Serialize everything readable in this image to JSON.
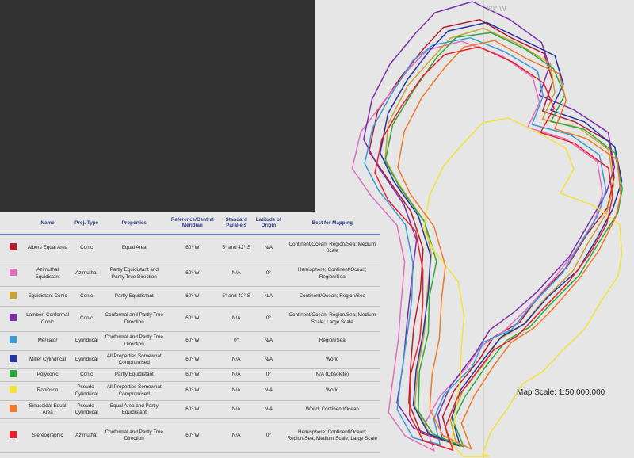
{
  "map": {
    "meridian_label": "60° W",
    "scale_label": "Map Scale: 1:50,000,000"
  },
  "table": {
    "headers": [
      "",
      "Name",
      "Proj. Type",
      "Properties",
      "Reference/Central Meridian",
      "Standard Parallels",
      "Latitude of Origin",
      "Best for Mapping"
    ],
    "rows": [
      {
        "color": "#b01e2f",
        "name": "Albers Equal Area",
        "type": "Conic",
        "properties": "Equal Area",
        "meridian": "60° W",
        "parallels": "5° and 42° S",
        "origin": "N/A",
        "best": "Continent/Ocean; Region/Sea; Medium Scale"
      },
      {
        "color": "#e06fc0",
        "name": "Azimuthal Equidistant",
        "type": "Azimuthal",
        "properties": "Partly Equidistant and Partly True Direction",
        "meridian": "60° W",
        "parallels": "N/A",
        "origin": "0°",
        "best": "Hemisphere; Continent/Ocean; Region/Sea"
      },
      {
        "color": "#c9a233",
        "name": "Equidistant Conic",
        "type": "Conic",
        "properties": "Partly Equidistant",
        "meridian": "60° W",
        "parallels": "5° and 42° S",
        "origin": "N/A",
        "best": "Continent/Ocean; Region/Sea"
      },
      {
        "color": "#7a2fa8",
        "name": "Lambert Conformal Conic",
        "type": "Conic",
        "properties": "Conformal and Partly True Direction",
        "meridian": "60° W",
        "parallels": "N/A",
        "origin": "0°",
        "best": "Continent/Ocean; Region/Sea; Medium Scale; Large Scale"
      },
      {
        "color": "#3d9ad6",
        "name": "Mercator",
        "type": "Cylindrical",
        "properties": "Conformal and Partly True Direction",
        "meridian": "60° W",
        "parallels": "0°",
        "origin": "N/A",
        "best": "Region/Sea"
      },
      {
        "color": "#2434a0",
        "name": "Miller Cylindrical",
        "type": "Cylindrical",
        "properties": "All Properties Somewhat Compromised",
        "meridian": "60° W",
        "parallels": "N/A",
        "origin": "N/A",
        "best": "World"
      },
      {
        "color": "#2ea83a",
        "name": "Polyconic",
        "type": "Conic",
        "properties": "Partly Equidistant",
        "meridian": "60° W",
        "parallels": "N/A",
        "origin": "0°",
        "best": "N/A (Obsolete)"
      },
      {
        "color": "#f2e23a",
        "name": "Robinson",
        "type": "Pseudo-Cylindrical",
        "properties": "All Properties Somewhat Compromised",
        "meridian": "60° W",
        "parallels": "N/A",
        "origin": "N/A",
        "best": "World"
      },
      {
        "color": "#ee7a2a",
        "name": "Sinusoidal Equal Area",
        "type": "Pseudo-Cylindrical",
        "properties": "Equal Area and Partly Equidistant",
        "meridian": "60° W",
        "parallels": "N/A",
        "origin": "N/A",
        "best": "World; Continent/Ocean"
      },
      {
        "color": "#e6202e",
        "name": "Stereographic",
        "type": "Azimuthal",
        "properties": "Conformal and Partly True Direction",
        "meridian": "60° W",
        "parallels": "N/A",
        "origin": "0°",
        "best": "Hemisphere; Continent/Ocean; Region/Sea; Medium Scale; Large Scale"
      }
    ]
  }
}
